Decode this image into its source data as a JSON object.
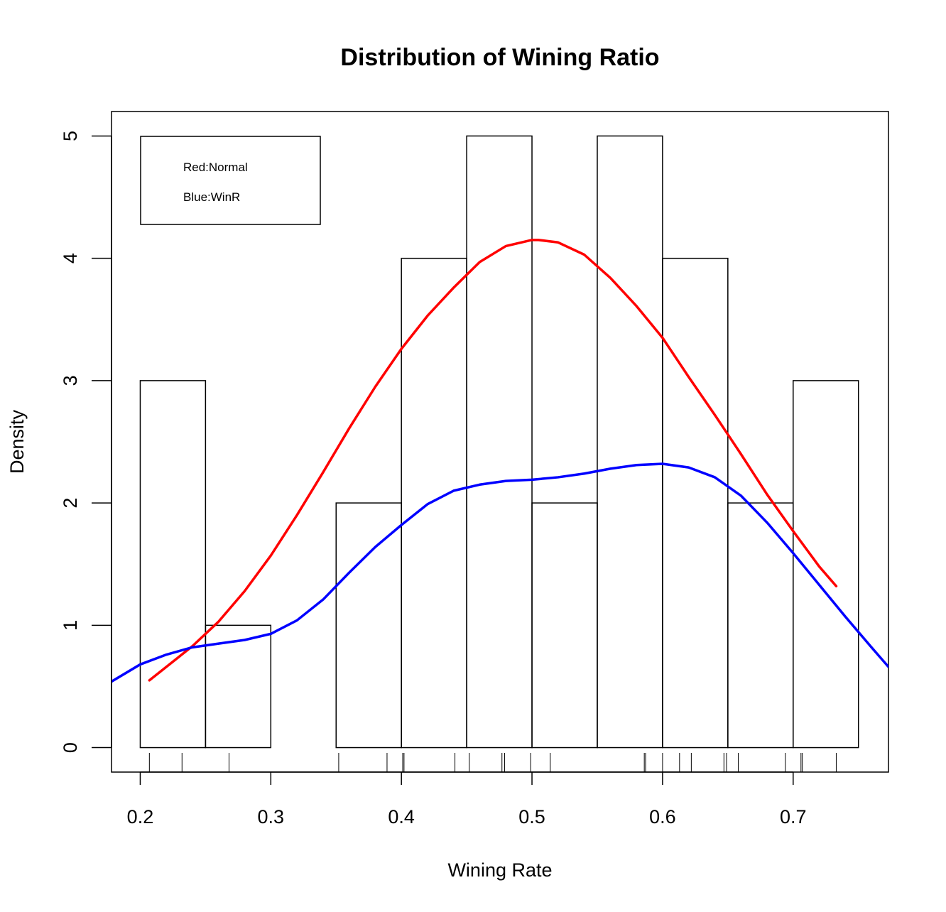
{
  "chart_data": {
    "type": "bar",
    "title": "Distribution of Wining Ratio",
    "xlabel": "Wining Rate",
    "ylabel": "Density",
    "xlim": [
      0.178,
      0.773
    ],
    "ylim": [
      -0.2,
      5.2
    ],
    "xticks": [
      "0.2",
      "0.3",
      "0.4",
      "0.5",
      "0.6",
      "0.7"
    ],
    "yticks": [
      "0",
      "1",
      "2",
      "3",
      "4",
      "5"
    ],
    "grid": false,
    "histogram": {
      "bins": [
        {
          "x0": 0.2,
          "x1": 0.25,
          "density": 3
        },
        {
          "x0": 0.25,
          "x1": 0.3,
          "density": 1
        },
        {
          "x0": 0.3,
          "x1": 0.35,
          "density": 0
        },
        {
          "x0": 0.35,
          "x1": 0.4,
          "density": 2
        },
        {
          "x0": 0.4,
          "x1": 0.45,
          "density": 4
        },
        {
          "x0": 0.45,
          "x1": 0.5,
          "density": 5
        },
        {
          "x0": 0.5,
          "x1": 0.55,
          "density": 2
        },
        {
          "x0": 0.55,
          "x1": 0.6,
          "density": 5
        },
        {
          "x0": 0.6,
          "x1": 0.65,
          "density": 4
        },
        {
          "x0": 0.65,
          "x1": 0.7,
          "density": 2
        },
        {
          "x0": 0.7,
          "x1": 0.75,
          "density": 3
        }
      ]
    },
    "series": [
      {
        "name": "Red:Normal",
        "type": "line",
        "color": "#ff0000",
        "x": [
          0.207,
          0.22,
          0.24,
          0.26,
          0.28,
          0.3,
          0.32,
          0.34,
          0.36,
          0.38,
          0.4,
          0.42,
          0.44,
          0.46,
          0.48,
          0.5,
          0.505,
          0.52,
          0.54,
          0.56,
          0.58,
          0.6,
          0.62,
          0.64,
          0.66,
          0.68,
          0.7,
          0.72,
          0.733
        ],
        "y": [
          0.55,
          0.66,
          0.83,
          1.03,
          1.28,
          1.57,
          1.9,
          2.25,
          2.61,
          2.95,
          3.26,
          3.53,
          3.76,
          3.97,
          4.1,
          4.15,
          4.15,
          4.13,
          4.03,
          3.84,
          3.61,
          3.35,
          3.03,
          2.72,
          2.4,
          2.07,
          1.77,
          1.48,
          1.32
        ]
      },
      {
        "name": "Blue:WinR",
        "type": "line",
        "color": "#0000ff",
        "x": [
          0.178,
          0.2,
          0.22,
          0.24,
          0.26,
          0.28,
          0.3,
          0.32,
          0.34,
          0.36,
          0.38,
          0.4,
          0.42,
          0.44,
          0.46,
          0.48,
          0.5,
          0.52,
          0.54,
          0.56,
          0.58,
          0.6,
          0.62,
          0.64,
          0.66,
          0.68,
          0.7,
          0.72,
          0.74,
          0.76,
          0.773
        ],
        "y": [
          0.54,
          0.68,
          0.76,
          0.82,
          0.85,
          0.88,
          0.93,
          1.04,
          1.21,
          1.43,
          1.64,
          1.82,
          1.99,
          2.1,
          2.15,
          2.18,
          2.19,
          2.21,
          2.24,
          2.28,
          2.31,
          2.32,
          2.29,
          2.21,
          2.06,
          1.84,
          1.59,
          1.33,
          1.07,
          0.82,
          0.66
        ]
      }
    ],
    "rug": [
      0.207,
      0.232,
      0.268,
      0.352,
      0.389,
      0.401,
      0.402,
      0.441,
      0.452,
      0.477,
      0.479,
      0.499,
      0.514,
      0.586,
      0.587,
      0.6,
      0.613,
      0.622,
      0.647,
      0.649,
      0.658,
      0.694,
      0.706,
      0.707,
      0.733
    ],
    "legend": {
      "position": "top-left",
      "entries": [
        "Red:Normal",
        "Blue:WinR"
      ]
    }
  }
}
